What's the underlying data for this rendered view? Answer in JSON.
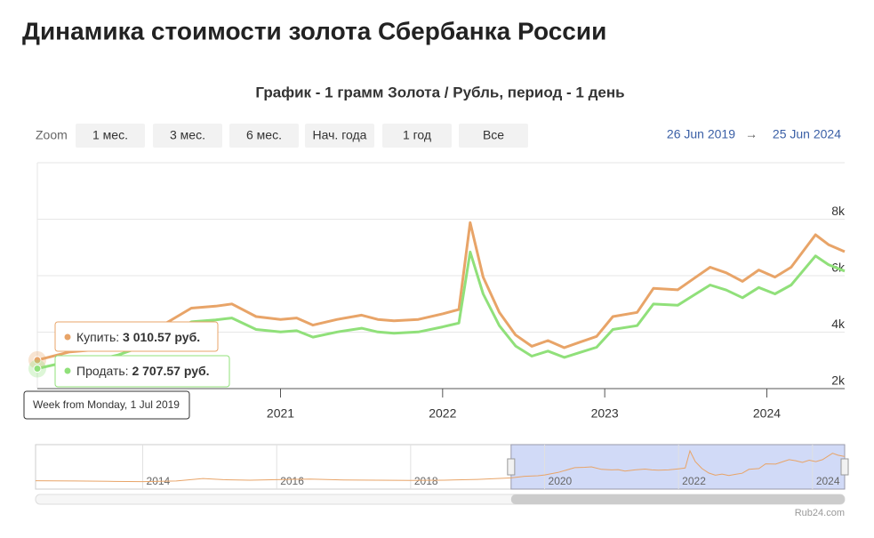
{
  "page_title": "Динамика стоимости золота Сбербанка России",
  "zoom": {
    "label": "Zoom",
    "buttons": [
      "1 мес.",
      "3 мес.",
      "6 мес.",
      "Нач. года",
      "1 год",
      "Все"
    ]
  },
  "range": {
    "from": "26 Jun 2019",
    "arrow": "→",
    "to": "25 Jun 2024"
  },
  "tooltip": {
    "buy": "3 010.57 руб.",
    "sell": "2 707.57 руб.",
    "date": "Week from Monday, 1 Jul 2019"
  },
  "credit": "Rub24.com",
  "chart_data": {
    "type": "line",
    "title": "График - 1 грамм Золота / Рубль, период - 1 день",
    "x": [
      2019.5,
      2019.7,
      2019.9,
      2020.0,
      2020.2,
      2020.45,
      2020.6,
      2020.7,
      2020.85,
      2021.0,
      2021.1,
      2021.2,
      2021.35,
      2021.5,
      2021.6,
      2021.7,
      2021.85,
      2022.0,
      2022.1,
      2022.17,
      2022.25,
      2022.35,
      2022.45,
      2022.55,
      2022.65,
      2022.75,
      2022.85,
      2022.95,
      2023.05,
      2023.2,
      2023.3,
      2023.45,
      2023.55,
      2023.65,
      2023.75,
      2023.85,
      2023.95,
      2024.05,
      2024.15,
      2024.3,
      2024.38,
      2024.48
    ],
    "series": [
      {
        "name": "Купить:",
        "color": "#e8a468",
        "values": [
          3010.57,
          3300,
          3400,
          3550,
          4000,
          4850,
          4920,
          5000,
          4550,
          4450,
          4500,
          4250,
          4450,
          4600,
          4450,
          4400,
          4450,
          4650,
          4800,
          7880,
          5950,
          4700,
          3900,
          3500,
          3700,
          3450,
          3650,
          3850,
          4550,
          4700,
          5550,
          5500,
          5900,
          6300,
          6100,
          5800,
          6200,
          5950,
          6300,
          7450,
          7100,
          6850
        ]
      },
      {
        "name": "Продать:",
        "color": "#90e07a",
        "values": [
          2707.57,
          2970,
          3060,
          3195,
          3600,
          4365,
          4430,
          4500,
          4095,
          4005,
          4050,
          3825,
          4005,
          4140,
          4005,
          3960,
          4005,
          4185,
          4320,
          6840,
          5355,
          4230,
          3510,
          3150,
          3330,
          3105,
          3285,
          3465,
          4095,
          4230,
          4995,
          4950,
          5310,
          5670,
          5490,
          5220,
          5580,
          5355,
          5670,
          6700,
          6390,
          6165
        ]
      }
    ],
    "xlim": [
      2019.5,
      2024.48
    ],
    "xticks": [
      2021,
      2022,
      2023,
      2024
    ],
    "ylim": [
      2000,
      10000
    ],
    "yticks": [
      {
        "value": 2000,
        "label": "2k"
      },
      {
        "value": 4000,
        "label": "4k"
      },
      {
        "value": 6000,
        "label": "6k"
      },
      {
        "value": 8000,
        "label": "8k"
      }
    ],
    "grid": true,
    "navigator": {
      "x": [
        2012.4,
        2013,
        2013.5,
        2014,
        2014.5,
        2014.9,
        2015.2,
        2015.6,
        2016,
        2016.5,
        2017,
        2017.5,
        2018,
        2018.5,
        2019,
        2019.4
      ],
      "values": [
        2500,
        2450,
        2400,
        2350,
        2450,
        2900,
        2700,
        2600,
        2700,
        2800,
        2650,
        2600,
        2550,
        2600,
        2750,
        2950
      ],
      "xlim": [
        2012.4,
        2024.48
      ],
      "ylim": [
        1000,
        9000
      ],
      "xticks": [
        2014,
        2016,
        2018,
        2020,
        2022,
        2024
      ]
    }
  }
}
